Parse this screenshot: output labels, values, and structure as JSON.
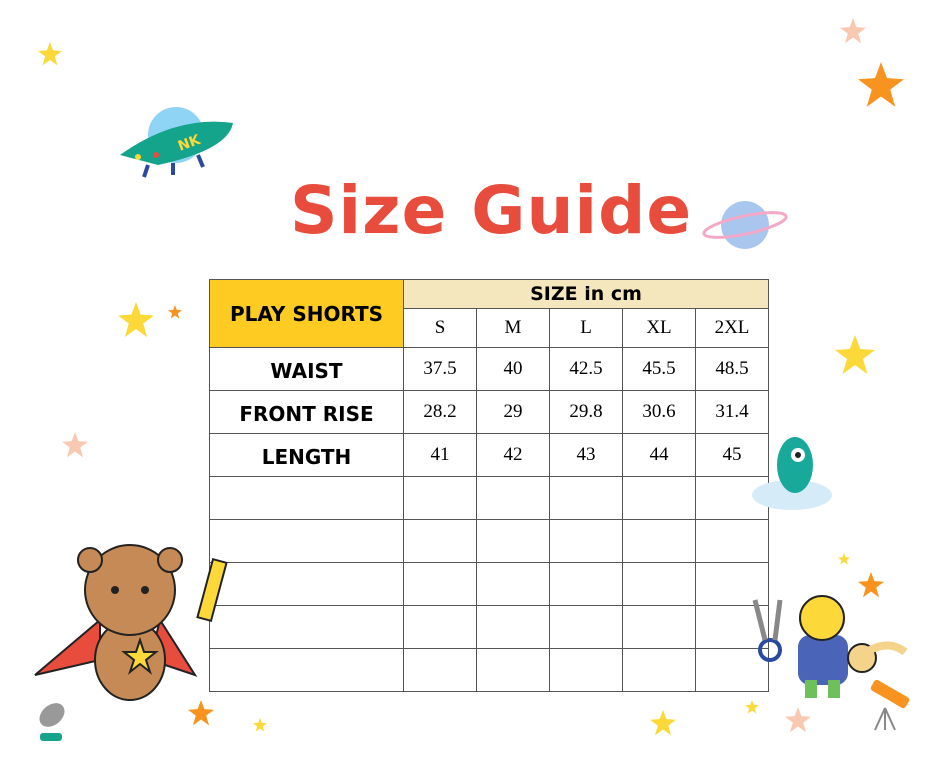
{
  "title": "Size Guide",
  "colors": {
    "title": "#e84c3d",
    "product_header": "#fdcb21",
    "size_header": "#f4e6bd",
    "star": "#fcd838",
    "orange_star": "#f7931e"
  },
  "table": {
    "product": "PLAY SHORTS",
    "unit_header": "SIZE in cm",
    "sizes": [
      "S",
      "M",
      "L",
      "XL",
      "2XL"
    ],
    "rows": [
      {
        "label": "WAIST",
        "values": [
          "37.5",
          "40",
          "42.5",
          "45.5",
          "48.5"
        ]
      },
      {
        "label": "FRONT RISE",
        "values": [
          "28.2",
          "29",
          "29.8",
          "30.6",
          "31.4"
        ]
      },
      {
        "label": "LENGTH",
        "values": [
          "41",
          "42",
          "43",
          "44",
          "45"
        ]
      }
    ],
    "empty_rows": 5
  },
  "decorations": [
    "ufo-icon",
    "planet-icon",
    "star-icon",
    "bear-icon",
    "crayon-icon",
    "monster-icon",
    "cat-icon",
    "scissors-icon",
    "tape-measure-icon",
    "satellite-dish-icon",
    "telescope-icon"
  ],
  "ufo_text": "NK"
}
